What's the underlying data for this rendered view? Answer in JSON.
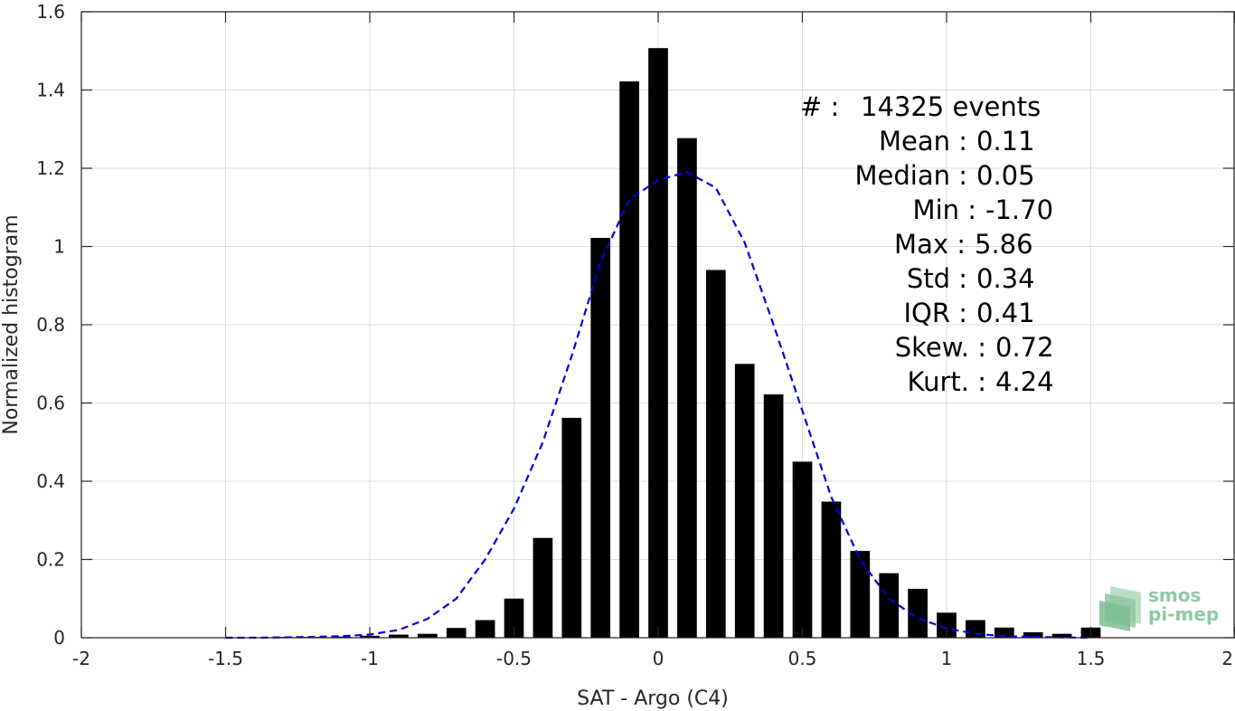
{
  "chart_data": {
    "type": "bar",
    "xlabel": "SAT - Argo (C4)",
    "ylabel": "Normalized histogram",
    "xlim": [
      -2,
      2
    ],
    "ylim": [
      0,
      1.6
    ],
    "xticks": [
      -2,
      -1.5,
      -1,
      -0.5,
      0,
      0.5,
      1,
      1.5,
      2
    ],
    "xtick_labels": [
      "-2",
      "-1.5",
      "-1",
      "-0.5",
      "0",
      "0.5",
      "1",
      "1.5",
      "2"
    ],
    "yticks": [
      0,
      0.2,
      0.4,
      0.6,
      0.8,
      1.0,
      1.2,
      1.4,
      1.6
    ],
    "ytick_labels": [
      "0",
      "0.2",
      "0.4",
      "0.6",
      "0.8",
      "1",
      "1.2",
      "1.4",
      "1.6"
    ],
    "grid": true,
    "bar_color": "#000000",
    "bin_width": 0.1,
    "bins": [
      -1.5,
      -1.4,
      -1.3,
      -1.2,
      -1.1,
      -1.0,
      -0.9,
      -0.8,
      -0.7,
      -0.6,
      -0.5,
      -0.4,
      -0.3,
      -0.2,
      -0.1,
      0.0,
      0.1,
      0.2,
      0.3,
      0.4,
      0.5,
      0.6,
      0.7,
      0.8,
      0.9,
      1.0,
      1.1,
      1.2,
      1.3,
      1.4,
      1.5
    ],
    "values": [
      0.001,
      0.001,
      0.002,
      0.002,
      0.003,
      0.005,
      0.008,
      0.01,
      0.025,
      0.045,
      0.1,
      0.255,
      0.562,
      1.022,
      1.422,
      1.507,
      1.277,
      0.94,
      0.7,
      0.622,
      0.45,
      0.348,
      0.222,
      0.165,
      0.125,
      0.064,
      0.045,
      0.026,
      0.014,
      0.01,
      0.026
    ],
    "fit": {
      "style": "dashed",
      "color": "#0000dd",
      "x": [
        -1.5,
        -1.4,
        -1.3,
        -1.2,
        -1.1,
        -1.0,
        -0.9,
        -0.8,
        -0.7,
        -0.6,
        -0.5,
        -0.4,
        -0.3,
        -0.2,
        -0.1,
        0.0,
        0.05,
        0.1,
        0.15,
        0.2,
        0.3,
        0.4,
        0.5,
        0.6,
        0.7,
        0.8,
        0.9,
        1.0,
        1.1,
        1.2,
        1.3,
        1.4,
        1.5
      ],
      "y": [
        0.0,
        0.0,
        0.001,
        0.002,
        0.004,
        0.008,
        0.02,
        0.048,
        0.1,
        0.2,
        0.33,
        0.5,
        0.72,
        0.96,
        1.12,
        1.17,
        1.18,
        1.19,
        1.17,
        1.15,
        1.01,
        0.8,
        0.58,
        0.36,
        0.2,
        0.1,
        0.05,
        0.024,
        0.01,
        0.004,
        0.002,
        0.001,
        0.0
      ]
    },
    "annotations": [
      {
        "label": "#  :",
        "value": "14325 events"
      },
      {
        "label": "Mean :",
        "value": "0.11"
      },
      {
        "label": "Median :",
        "value": "0.05"
      },
      {
        "label": "Min :",
        "value": "-1.70"
      },
      {
        "label": "Max :",
        "value": "5.86"
      },
      {
        "label": "Std :",
        "value": "0.34"
      },
      {
        "label": "IQR :",
        "value": "0.41"
      },
      {
        "label": "Skew. :",
        "value": "0.72"
      },
      {
        "label": "Kurt. :",
        "value": "4.24"
      }
    ]
  },
  "logo": {
    "line1": "smos",
    "line2": "pi-mep",
    "color": "#8ec9a3"
  }
}
